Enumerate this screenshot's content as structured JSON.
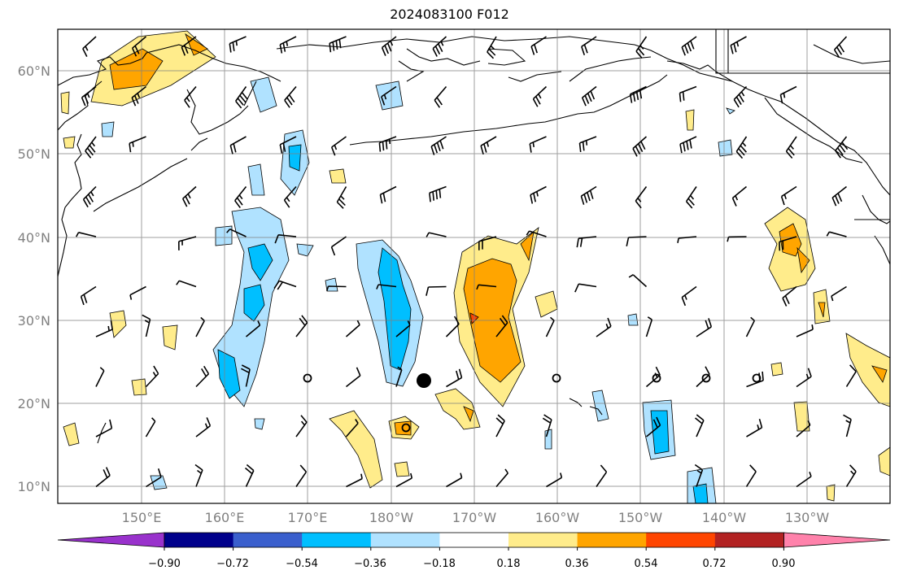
{
  "title": "2024083100 F012",
  "map": {
    "lat_labels": [
      "60°N",
      "50°N",
      "40°N",
      "30°N",
      "20°N",
      "10°N"
    ],
    "lon_labels": [
      "150°E",
      "160°E",
      "170°E",
      "180°W",
      "170°W",
      "160°W",
      "150°W",
      "140°W",
      "130°W"
    ],
    "gridlines": true
  },
  "colorbar": {
    "ticks": [
      "−0.90",
      "−0.72",
      "−0.54",
      "−0.36",
      "−0.18",
      "0.18",
      "0.36",
      "0.54",
      "0.72",
      "0.90"
    ],
    "colors": [
      "#9932CC",
      "#00008B",
      "#3A5FCD",
      "#00BFFF",
      "#B0E2FF",
      "#FFFFFF",
      "#FFEC8B",
      "#FFA500",
      "#FF4500",
      "#B22222",
      "#FF82AB"
    ]
  },
  "icons": [
    "wind-barb-icon",
    "storm-center-marker-icon",
    "calm-wind-circle-icon"
  ]
}
